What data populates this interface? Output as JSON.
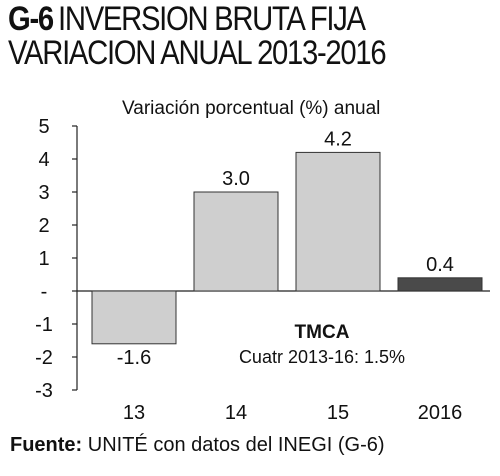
{
  "header": {
    "code": "G-6",
    "title_line1": "INVERSION BRUTA FIJA",
    "title_line2": "VARIACION ANUAL 2013-2016"
  },
  "chart_data": {
    "type": "bar",
    "title": "INVERSION BRUTA FIJA VARIACION ANUAL 2013-2016",
    "ylabel": "Variación porcentual (%) anual",
    "xlabel": "",
    "categories": [
      "13",
      "14",
      "15",
      "2016"
    ],
    "values": [
      -1.6,
      3.0,
      4.2,
      0.4
    ],
    "data_labels": [
      "-1.6",
      "3.0",
      "4.2",
      "0.4"
    ],
    "ylim": [
      -3,
      5
    ],
    "yticks": [
      5,
      4,
      3,
      2,
      1,
      0,
      -1,
      -2,
      -3
    ],
    "ytick_labels": [
      "5",
      "4",
      "3",
      "2",
      "1",
      "-",
      "-1",
      "-2",
      "-3"
    ],
    "bar_colors": [
      "#cfcfcf",
      "#cfcfcf",
      "#cfcfcf",
      "#4a4a4a"
    ],
    "grid": false,
    "annotation": {
      "heading": "TMCA",
      "text": "Cuatr 2013-16:  1.5%"
    }
  },
  "footer": {
    "source_label": "Fuente:",
    "source_text": " UNITÉ con datos del INEGI (G-6)"
  }
}
